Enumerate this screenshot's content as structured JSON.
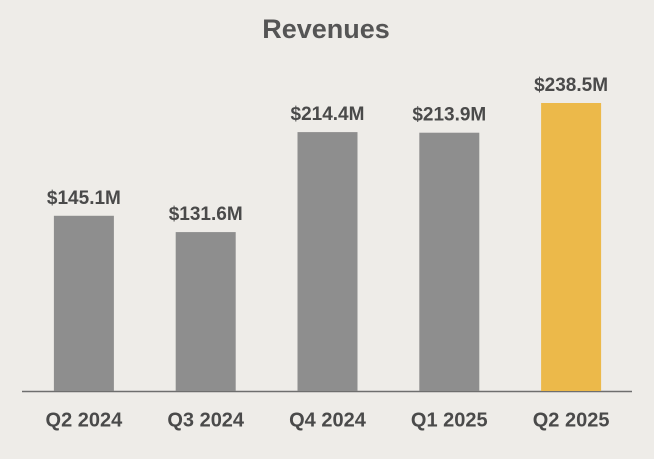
{
  "chart_data": {
    "type": "bar",
    "title": "Revenues",
    "categories": [
      "Q2 2024",
      "Q3 2024",
      "Q4 2024",
      "Q1 2025",
      "Q2 2025"
    ],
    "values": [
      145.1,
      131.6,
      214.4,
      213.9,
      238.5
    ],
    "value_labels": [
      "$145.1M",
      "$131.6M",
      "$214.4M",
      "$213.9M",
      "$238.5M"
    ],
    "colors": [
      "#8e8e8e",
      "#8e8e8e",
      "#8e8e8e",
      "#8e8e8e",
      "#ecb94a"
    ]
  }
}
